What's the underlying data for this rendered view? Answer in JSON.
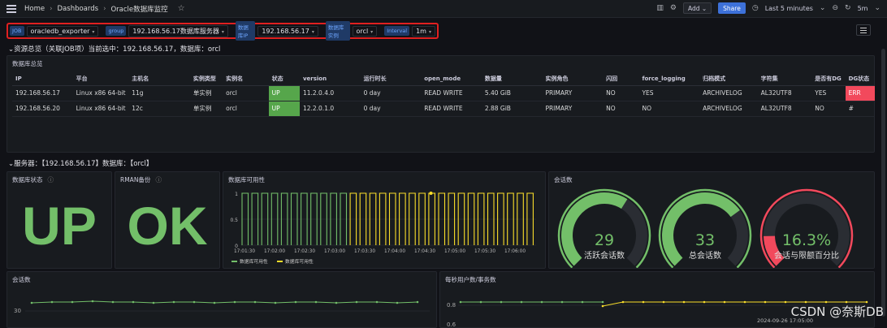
{
  "breadcrumb": {
    "home": "Home",
    "dashboards": "Dashboards",
    "title": "Oracle数据库监控"
  },
  "toolbar": {
    "add": "Add ⌄",
    "share": "Share",
    "time": "Last 5 minutes",
    "refresh": "5m"
  },
  "variables": [
    {
      "label": "JOB",
      "value": "oracledb_exporter"
    },
    {
      "label": "group",
      "value": "192.168.56.17数据库服务器"
    },
    {
      "label": "数据库IP",
      "value": "192.168.56.17"
    },
    {
      "label": "数据库实例",
      "value": "orcl"
    },
    {
      "label": "Interval",
      "value": "1m"
    }
  ],
  "row1_title": "资源总览（关联JOB项）当前选中：192.168.56.17，数据库：orcl",
  "overview": {
    "title": "数据库总览",
    "columns": [
      "IP",
      "平台",
      "主机名",
      "实例类型",
      "实例名",
      "状态",
      "version",
      "运行时长",
      "open_mode",
      "数据量",
      "实例角色",
      "闪回",
      "force_logging",
      "归档模式",
      "字符集",
      "是否有DG",
      "DG状态"
    ],
    "rows": [
      [
        "192.168.56.17",
        "Linux x86 64-bit",
        "11g",
        "单实例",
        "orcl",
        "UP",
        "11.2.0.4.0",
        "0 day",
        "READ WRITE",
        "5.40 GiB",
        "PRIMARY",
        "NO",
        "YES",
        "ARCHIVELOG",
        "AL32UTF8",
        "YES",
        "ERR"
      ],
      [
        "192.168.56.20",
        "Linux x86 64-bit",
        "12c",
        "单实例",
        "orcl",
        "UP",
        "12.2.0.1.0",
        "0 day",
        "READ WRITE",
        "2.88 GiB",
        "PRIMARY",
        "NO",
        "NO",
        "ARCHIVELOG",
        "AL32UTF8",
        "NO",
        "#"
      ]
    ]
  },
  "row2_title": "服务器：【192.168.56.17】数据库：【orcl】",
  "db_status": {
    "title": "数据库状态",
    "value": "UP"
  },
  "rman": {
    "title": "RMAN备份",
    "value": "OK"
  },
  "availability": {
    "title": "数据库可用性",
    "legend": [
      "数据库可用性",
      "数据库可用性"
    ]
  },
  "sessions_gauges": {
    "title": "会话数",
    "gauges": [
      {
        "value": "29",
        "label": "活跃会话数",
        "fraction": 0.62
      },
      {
        "value": "33",
        "label": "总会话数",
        "fraction": 0.7
      },
      {
        "value": "16.3%",
        "label": "会话与限额百分比",
        "fraction": 0.163
      }
    ]
  },
  "sessions_ts": {
    "title": "会话数",
    "ytick": "30"
  },
  "tps": {
    "title": "每秒用户数/事务数",
    "ytick": "0.8",
    "ytick2": "0.6",
    "tooltip_date": "2024-09-26 17:05:00"
  },
  "watermark": "CSDN @奈斯DB",
  "colors": {
    "green": "#73bf69",
    "yellow": "#fade2a",
    "red": "#f2495c",
    "bg": "#111217"
  },
  "chart_data": {
    "type": "line",
    "x": [
      "17:01:30",
      "17:02:00",
      "17:02:30",
      "17:03:00",
      "17:03:30",
      "17:04:00",
      "17:04:30",
      "17:05:00",
      "17:05:30",
      "17:06:00"
    ],
    "xlabel": "",
    "ylabel": "",
    "ylim": [
      0,
      1
    ],
    "yticks": [
      "0",
      "0.5",
      "1"
    ],
    "series": [
      {
        "name": "数据库可用性",
        "color": "#73bf69"
      },
      {
        "name": "数据库可用性",
        "color": "#fade2a"
      }
    ]
  }
}
